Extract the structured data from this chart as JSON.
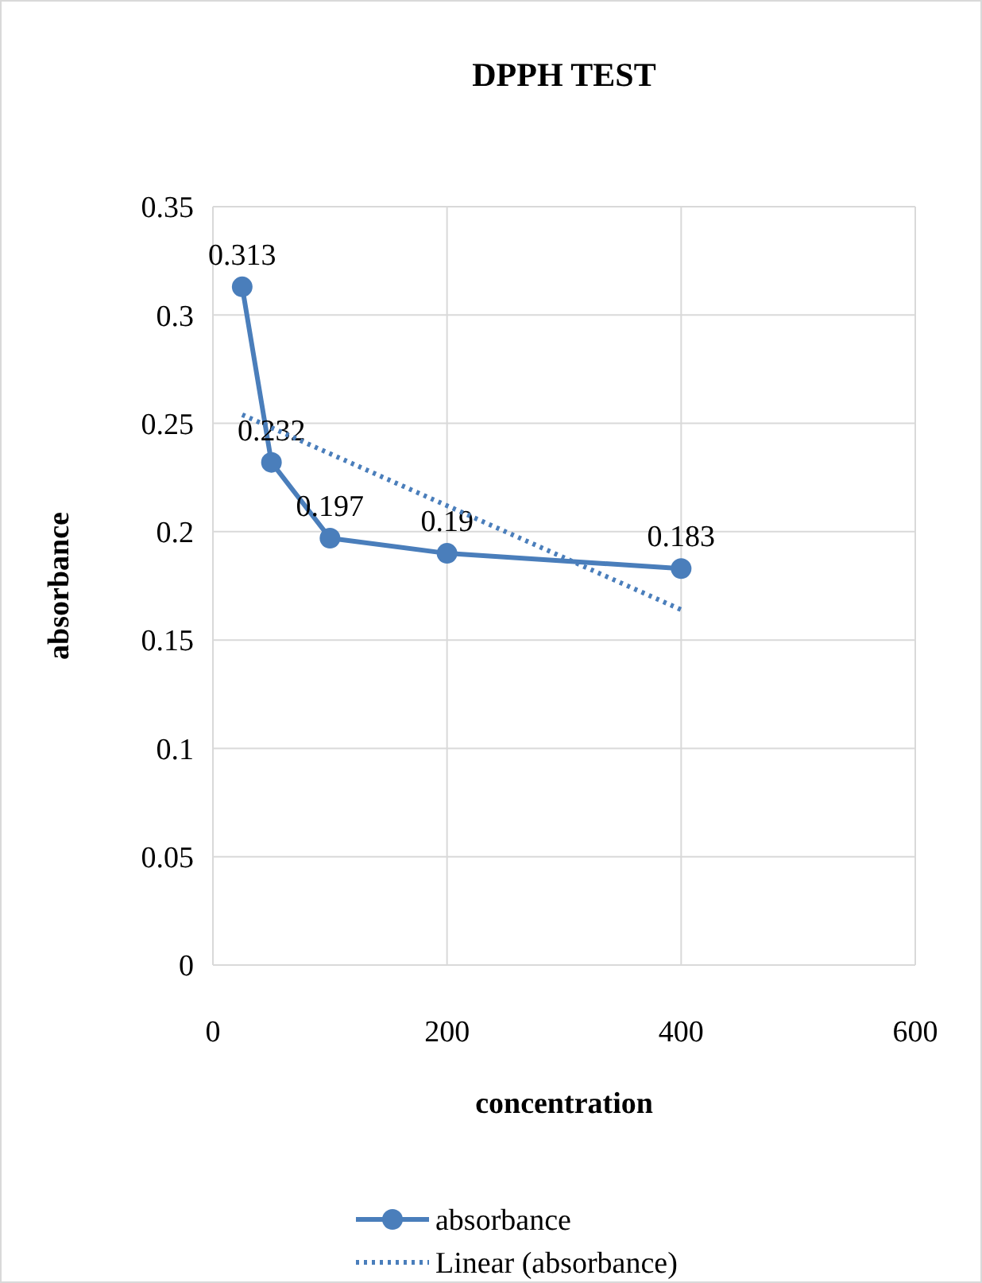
{
  "chart_data": {
    "type": "line",
    "title": "DPPH TEST",
    "xlabel": "concentration",
    "ylabel": "absorbance",
    "xlim": [
      0,
      600
    ],
    "xticks": [
      0,
      200,
      400,
      600
    ],
    "ylim": [
      0,
      0.35
    ],
    "yticks": [
      0,
      0.05,
      0.1,
      0.15,
      0.2,
      0.25,
      0.3,
      0.35
    ],
    "grid": true,
    "legend": "bottom",
    "series": [
      {
        "name": "absorbance",
        "color": "#4a7ebb",
        "x": [
          25,
          50,
          100,
          200,
          400
        ],
        "values": [
          0.313,
          0.232,
          0.197,
          0.19,
          0.183
        ],
        "marker": "circle",
        "line_style": "solid",
        "data_labels": true
      },
      {
        "name": "Linear (absorbance)",
        "color": "#4a7ebb",
        "x": [
          25,
          400
        ],
        "values": [
          0.254,
          0.164
        ],
        "marker": "none",
        "line_style": "dotted"
      }
    ]
  }
}
